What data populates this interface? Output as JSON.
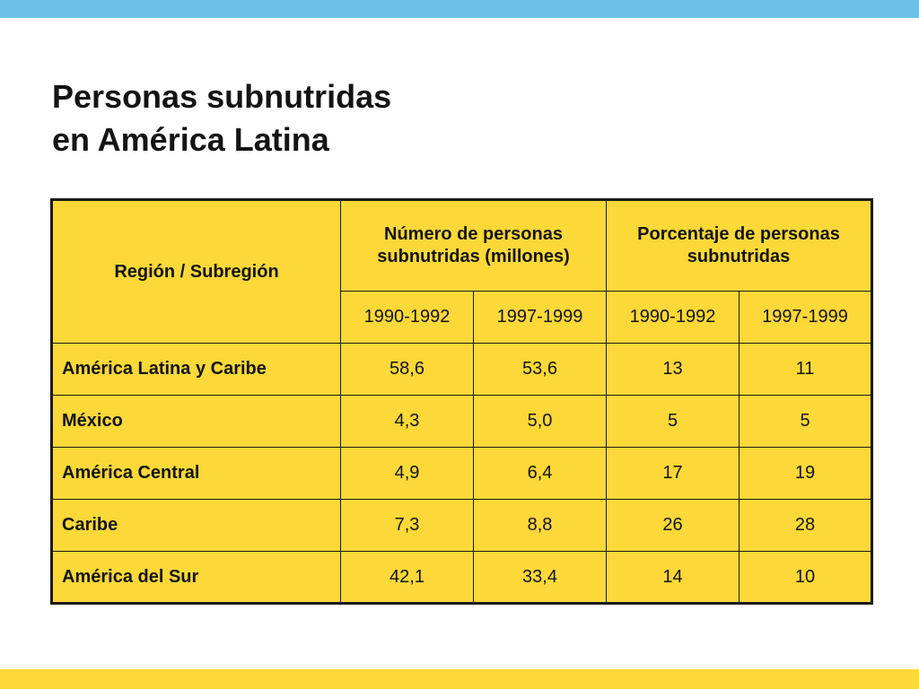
{
  "title": {
    "line1": "Personas subnutridas",
    "line2": "en América Latina"
  },
  "table": {
    "region_header": "Región / Subregión",
    "group_headers": [
      "Número de personas subnutridas (millones)",
      "Porcentaje de personas subnutridas"
    ],
    "year_headers": [
      "1990-1992",
      "1997-1999",
      "1990-1992",
      "1997-1999"
    ],
    "rows": [
      {
        "region": "América Latina y Caribe",
        "values": [
          "58,6",
          "53,6",
          "13",
          "11"
        ]
      },
      {
        "region": "México",
        "values": [
          "4,3",
          "5,0",
          "5",
          "5"
        ]
      },
      {
        "region": "América Central",
        "values": [
          "4,9",
          "6,4",
          "17",
          "19"
        ]
      },
      {
        "region": "Caribe",
        "values": [
          "7,3",
          "8,8",
          "26",
          "28"
        ]
      },
      {
        "region": "América del Sur",
        "values": [
          "42,1",
          "33,4",
          "14",
          "10"
        ]
      }
    ]
  },
  "colors": {
    "top_bar": "#6dc1e8",
    "bottom_bar": "#fcd838",
    "table_fill": "#fcd838",
    "border": "#1a1a1a"
  }
}
